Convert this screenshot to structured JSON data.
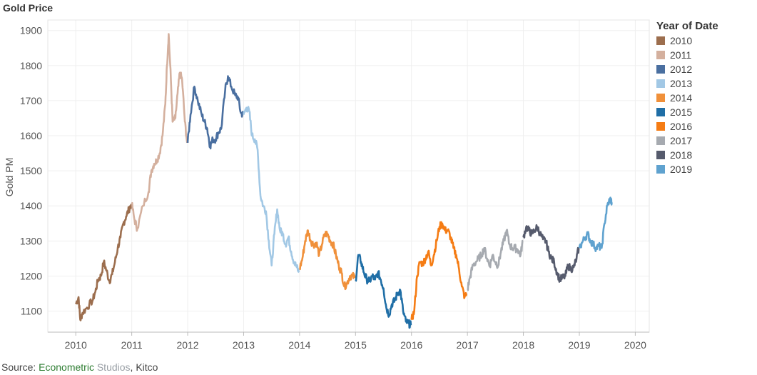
{
  "chart_data": {
    "type": "line",
    "title": "Gold Price",
    "xlabel": "",
    "ylabel": "Gold PM",
    "xlim": [
      2009.5,
      2020.25
    ],
    "ylim": [
      1040,
      1930
    ],
    "x_ticks": [
      "2010",
      "2011",
      "2012",
      "2013",
      "2014",
      "2015",
      "2016",
      "2017",
      "2018",
      "2019",
      "2020"
    ],
    "y_ticks": [
      "1100",
      "1200",
      "1300",
      "1400",
      "1500",
      "1600",
      "1700",
      "1800",
      "1900"
    ],
    "grid": true,
    "legend_title": "Year of Date",
    "legend_position": "right",
    "series": [
      {
        "name": "2010",
        "color": "#9c6e4e",
        "points": [
          [
            2010.0,
            1120
          ],
          [
            2010.05,
            1140
          ],
          [
            2010.08,
            1075
          ],
          [
            2010.12,
            1095
          ],
          [
            2010.2,
            1110
          ],
          [
            2010.3,
            1130
          ],
          [
            2010.35,
            1155
          ],
          [
            2010.4,
            1190
          ],
          [
            2010.45,
            1200
          ],
          [
            2010.5,
            1240
          ],
          [
            2010.55,
            1215
          ],
          [
            2010.6,
            1185
          ],
          [
            2010.65,
            1205
          ],
          [
            2010.7,
            1240
          ],
          [
            2010.75,
            1280
          ],
          [
            2010.8,
            1310
          ],
          [
            2010.85,
            1350
          ],
          [
            2010.9,
            1370
          ],
          [
            2010.95,
            1390
          ],
          [
            2010.99,
            1405
          ]
        ]
      },
      {
        "name": "2011",
        "color": "#d4b09e",
        "points": [
          [
            2011.0,
            1405
          ],
          [
            2011.05,
            1360
          ],
          [
            2011.1,
            1335
          ],
          [
            2011.2,
            1400
          ],
          [
            2011.3,
            1440
          ],
          [
            2011.35,
            1500
          ],
          [
            2011.4,
            1520
          ],
          [
            2011.45,
            1530
          ],
          [
            2011.5,
            1550
          ],
          [
            2011.55,
            1600
          ],
          [
            2011.6,
            1690
          ],
          [
            2011.63,
            1800
          ],
          [
            2011.66,
            1890
          ],
          [
            2011.7,
            1760
          ],
          [
            2011.73,
            1640
          ],
          [
            2011.78,
            1650
          ],
          [
            2011.82,
            1720
          ],
          [
            2011.86,
            1780
          ],
          [
            2011.9,
            1760
          ],
          [
            2011.95,
            1640
          ],
          [
            2011.99,
            1580
          ]
        ]
      },
      {
        "name": "2012",
        "color": "#4a6fa0",
        "points": [
          [
            2012.0,
            1580
          ],
          [
            2012.05,
            1660
          ],
          [
            2012.12,
            1740
          ],
          [
            2012.18,
            1700
          ],
          [
            2012.25,
            1660
          ],
          [
            2012.3,
            1640
          ],
          [
            2012.35,
            1620
          ],
          [
            2012.4,
            1570
          ],
          [
            2012.45,
            1590
          ],
          [
            2012.5,
            1590
          ],
          [
            2012.55,
            1610
          ],
          [
            2012.6,
            1620
          ],
          [
            2012.67,
            1730
          ],
          [
            2012.72,
            1770
          ],
          [
            2012.78,
            1740
          ],
          [
            2012.85,
            1715
          ],
          [
            2012.9,
            1710
          ],
          [
            2012.95,
            1665
          ],
          [
            2012.99,
            1660
          ]
        ]
      },
      {
        "name": "2013",
        "color": "#a2c8e5",
        "points": [
          [
            2013.0,
            1660
          ],
          [
            2013.05,
            1680
          ],
          [
            2013.1,
            1670
          ],
          [
            2013.15,
            1600
          ],
          [
            2013.2,
            1590
          ],
          [
            2013.25,
            1560
          ],
          [
            2013.3,
            1430
          ],
          [
            2013.35,
            1400
          ],
          [
            2013.4,
            1385
          ],
          [
            2013.45,
            1300
          ],
          [
            2013.5,
            1230
          ],
          [
            2013.55,
            1320
          ],
          [
            2013.6,
            1390
          ],
          [
            2013.65,
            1330
          ],
          [
            2013.7,
            1320
          ],
          [
            2013.75,
            1290
          ],
          [
            2013.8,
            1310
          ],
          [
            2013.85,
            1270
          ],
          [
            2013.9,
            1240
          ],
          [
            2013.95,
            1225
          ],
          [
            2013.99,
            1210
          ]
        ]
      },
      {
        "name": "2014",
        "color": "#f0903a",
        "points": [
          [
            2014.0,
            1220
          ],
          [
            2014.05,
            1250
          ],
          [
            2014.1,
            1300
          ],
          [
            2014.15,
            1330
          ],
          [
            2014.2,
            1300
          ],
          [
            2014.25,
            1290
          ],
          [
            2014.3,
            1295
          ],
          [
            2014.35,
            1260
          ],
          [
            2014.4,
            1290
          ],
          [
            2014.45,
            1320
          ],
          [
            2014.5,
            1320
          ],
          [
            2014.55,
            1300
          ],
          [
            2014.6,
            1290
          ],
          [
            2014.65,
            1260
          ],
          [
            2014.7,
            1230
          ],
          [
            2014.75,
            1210
          ],
          [
            2014.8,
            1170
          ],
          [
            2014.85,
            1180
          ],
          [
            2014.9,
            1200
          ],
          [
            2014.95,
            1200
          ],
          [
            2014.99,
            1195
          ]
        ]
      },
      {
        "name": "2015",
        "color": "#1f6ea6",
        "points": [
          [
            2015.0,
            1185
          ],
          [
            2015.05,
            1260
          ],
          [
            2015.1,
            1240
          ],
          [
            2015.15,
            1210
          ],
          [
            2015.2,
            1190
          ],
          [
            2015.25,
            1185
          ],
          [
            2015.3,
            1200
          ],
          [
            2015.35,
            1190
          ],
          [
            2015.4,
            1210
          ],
          [
            2015.45,
            1190
          ],
          [
            2015.5,
            1165
          ],
          [
            2015.55,
            1110
          ],
          [
            2015.6,
            1090
          ],
          [
            2015.65,
            1120
          ],
          [
            2015.7,
            1130
          ],
          [
            2015.75,
            1150
          ],
          [
            2015.8,
            1160
          ],
          [
            2015.85,
            1100
          ],
          [
            2015.9,
            1070
          ],
          [
            2015.95,
            1065
          ],
          [
            2015.99,
            1060
          ]
        ]
      },
      {
        "name": "2016",
        "color": "#f57c14",
        "points": [
          [
            2016.0,
            1075
          ],
          [
            2016.05,
            1100
          ],
          [
            2016.1,
            1200
          ],
          [
            2016.15,
            1240
          ],
          [
            2016.2,
            1235
          ],
          [
            2016.25,
            1250
          ],
          [
            2016.3,
            1270
          ],
          [
            2016.35,
            1230
          ],
          [
            2016.4,
            1260
          ],
          [
            2016.45,
            1300
          ],
          [
            2016.5,
            1340
          ],
          [
            2016.55,
            1350
          ],
          [
            2016.6,
            1330
          ],
          [
            2016.65,
            1330
          ],
          [
            2016.7,
            1310
          ],
          [
            2016.75,
            1280
          ],
          [
            2016.8,
            1260
          ],
          [
            2016.85,
            1220
          ],
          [
            2016.9,
            1170
          ],
          [
            2016.95,
            1140
          ],
          [
            2016.99,
            1150
          ]
        ]
      },
      {
        "name": "2017",
        "color": "#a6aab0",
        "points": [
          [
            2017.0,
            1160
          ],
          [
            2017.05,
            1200
          ],
          [
            2017.1,
            1230
          ],
          [
            2017.15,
            1240
          ],
          [
            2017.2,
            1250
          ],
          [
            2017.25,
            1260
          ],
          [
            2017.3,
            1280
          ],
          [
            2017.35,
            1250
          ],
          [
            2017.4,
            1230
          ],
          [
            2017.45,
            1260
          ],
          [
            2017.5,
            1240
          ],
          [
            2017.55,
            1230
          ],
          [
            2017.6,
            1270
          ],
          [
            2017.65,
            1300
          ],
          [
            2017.7,
            1330
          ],
          [
            2017.75,
            1290
          ],
          [
            2017.8,
            1280
          ],
          [
            2017.85,
            1280
          ],
          [
            2017.9,
            1275
          ],
          [
            2017.95,
            1260
          ],
          [
            2017.99,
            1300
          ]
        ]
      },
      {
        "name": "2018",
        "color": "#565b6d",
        "points": [
          [
            2018.0,
            1310
          ],
          [
            2018.05,
            1340
          ],
          [
            2018.1,
            1330
          ],
          [
            2018.15,
            1320
          ],
          [
            2018.2,
            1330
          ],
          [
            2018.25,
            1340
          ],
          [
            2018.3,
            1320
          ],
          [
            2018.35,
            1305
          ],
          [
            2018.4,
            1300
          ],
          [
            2018.45,
            1270
          ],
          [
            2018.5,
            1250
          ],
          [
            2018.55,
            1240
          ],
          [
            2018.6,
            1210
          ],
          [
            2018.65,
            1190
          ],
          [
            2018.7,
            1195
          ],
          [
            2018.75,
            1200
          ],
          [
            2018.8,
            1230
          ],
          [
            2018.85,
            1220
          ],
          [
            2018.9,
            1225
          ],
          [
            2018.95,
            1250
          ],
          [
            2018.99,
            1280
          ]
        ]
      },
      {
        "name": "2019",
        "color": "#5fa2cf",
        "points": [
          [
            2019.0,
            1280
          ],
          [
            2019.05,
            1295
          ],
          [
            2019.1,
            1310
          ],
          [
            2019.15,
            1320
          ],
          [
            2019.2,
            1300
          ],
          [
            2019.25,
            1290
          ],
          [
            2019.3,
            1280
          ],
          [
            2019.35,
            1285
          ],
          [
            2019.4,
            1280
          ],
          [
            2019.45,
            1350
          ],
          [
            2019.5,
            1400
          ],
          [
            2019.55,
            1420
          ],
          [
            2019.58,
            1410
          ]
        ]
      }
    ]
  },
  "source": {
    "prefix": "Source: ",
    "part1": "Econometric",
    "part2": " Studios",
    "part3": ", Kitco"
  }
}
